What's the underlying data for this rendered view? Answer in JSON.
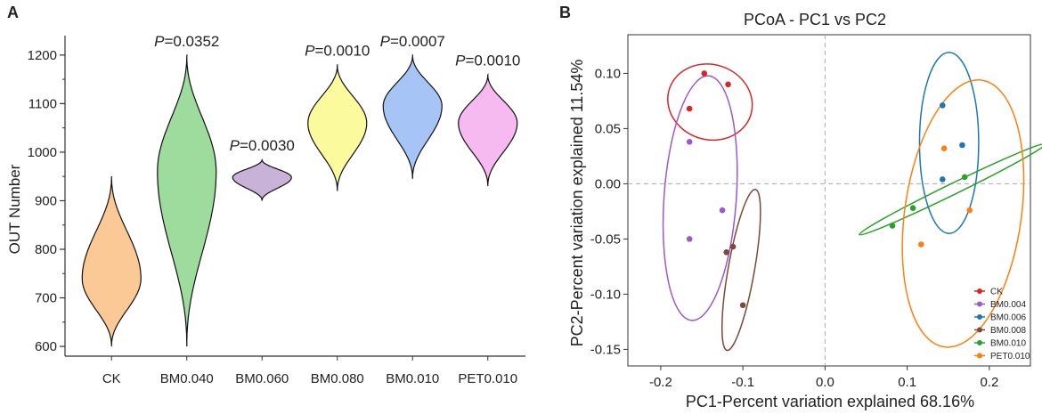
{
  "chart_data": [
    {
      "panel": "A",
      "type": "violin",
      "xlabel": "",
      "ylabel": "OUT Number",
      "ylim": [
        580,
        1240
      ],
      "yticks": [
        600,
        700,
        800,
        900,
        1000,
        1100,
        1200
      ],
      "groups": [
        {
          "label": "CK",
          "color": "#fbc996",
          "min": 600,
          "max": 950,
          "mode": 740,
          "p_prefix": "",
          "p_value": ""
        },
        {
          "label": "BM0.040",
          "color": "#9edc9e",
          "min": 600,
          "max": 1200,
          "mode": 960,
          "p_prefix": "P",
          "p_value": "=0.0352"
        },
        {
          "label": "BM0.060",
          "color": "#c8b2d8",
          "min": 900,
          "max": 985,
          "mode": 948,
          "p_prefix": "P",
          "p_value": "=0.0030"
        },
        {
          "label": "BM0.080",
          "color": "#fbfb9e",
          "min": 920,
          "max": 1180,
          "mode": 1060,
          "p_prefix": "P",
          "p_value": "=0.0010"
        },
        {
          "label": "BM0.010",
          "color": "#a7c4f7",
          "min": 945,
          "max": 1200,
          "mode": 1095,
          "p_prefix": "P",
          "p_value": "=0.0007"
        },
        {
          "label": "PET0.010",
          "color": "#f6b9f0",
          "min": 930,
          "max": 1160,
          "mode": 1060,
          "p_prefix": "P",
          "p_value": "=0.0010"
        }
      ]
    },
    {
      "panel": "B",
      "type": "scatter",
      "title": "PCoA - PC1 vs PC2",
      "xlabel": "PC1-Percent variation explained 68.16%",
      "ylabel": "PC2-Percent variation explained 11.54%",
      "xlim": [
        -0.24,
        0.25
      ],
      "ylim": [
        -0.165,
        0.135
      ],
      "xticks": [
        -0.2,
        -0.1,
        0.0,
        0.1,
        0.2
      ],
      "xtick_labels": [
        "-0.2",
        "-0.1",
        "0.0",
        "0.1",
        "0.2"
      ],
      "yticks": [
        -0.15,
        -0.1,
        -0.05,
        0.0,
        0.05,
        0.1
      ],
      "ytick_labels": [
        "-0.15",
        "-0.10",
        "-0.05",
        "0.00",
        "0.05",
        "0.10"
      ],
      "series": [
        {
          "name": "CK",
          "color": "#d62728",
          "points": [
            [
              -0.147,
              0.1
            ],
            [
              -0.118,
              0.09
            ],
            [
              -0.165,
              0.068
            ]
          ],
          "ellipse": {
            "cx": -0.14,
            "cy": 0.074,
            "rx": 0.052,
            "ry": 0.034,
            "angle": 18
          }
        },
        {
          "name": "BM0.004",
          "color": "#9b59c9",
          "points": [
            [
              -0.165,
              0.038
            ],
            [
              -0.125,
              -0.024
            ],
            [
              -0.165,
              -0.05
            ]
          ],
          "ellipse": {
            "cx": -0.152,
            "cy": -0.013,
            "rx": 0.044,
            "ry": 0.111,
            "angle": 4
          }
        },
        {
          "name": "BM0.006",
          "color": "#1f77b4",
          "points": [
            [
              0.143,
              0.071
            ],
            [
              0.167,
              0.035
            ],
            [
              0.143,
              0.004
            ]
          ],
          "ellipse": {
            "cx": 0.151,
            "cy": 0.037,
            "rx": 0.036,
            "ry": 0.082,
            "angle": 0
          }
        },
        {
          "name": "BM0.008",
          "color": "#7b4a3a",
          "points": [
            [
              -0.12,
              -0.062
            ],
            [
              -0.112,
              -0.057
            ],
            [
              -0.1,
              -0.11
            ]
          ],
          "ellipse": {
            "cx": -0.102,
            "cy": -0.078,
            "rx": 0.016,
            "ry": 0.074,
            "angle": 10
          }
        },
        {
          "name": "BM0.010",
          "color": "#2ca02c",
          "points": [
            [
              0.082,
              -0.038
            ],
            [
              0.107,
              -0.022
            ],
            [
              0.17,
              0.006
            ]
          ],
          "ellipse": {
            "cx": 0.155,
            "cy": -0.005,
            "rx": 0.126,
            "ry": 0.005,
            "angle": -26
          }
        },
        {
          "name": "PET0.010",
          "color": "#ff7f0e",
          "points": [
            [
              0.145,
              0.032
            ],
            [
              0.176,
              -0.024
            ],
            [
              0.117,
              -0.055
            ]
          ],
          "ellipse": {
            "cx": 0.168,
            "cy": -0.027,
            "rx": 0.071,
            "ry": 0.122,
            "angle": 8
          }
        }
      ],
      "legend": "bottom-right",
      "reference_lines": {
        "x": 0,
        "y": 0
      }
    }
  ]
}
